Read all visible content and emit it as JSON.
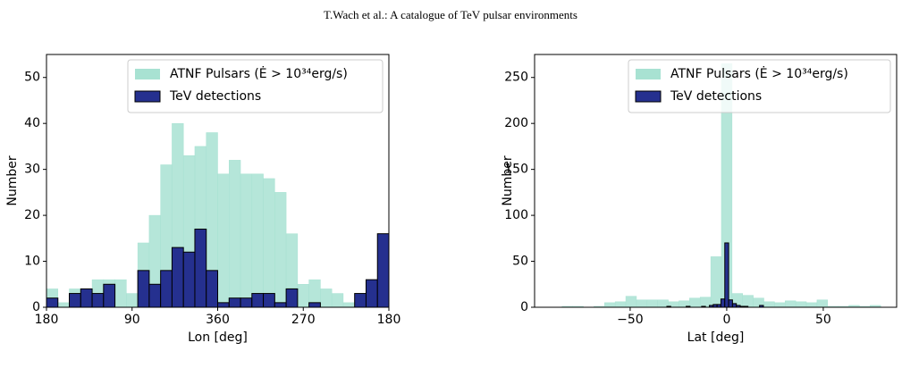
{
  "header": "T.Wach  et al.: A catalogue of TeV pulsar environments",
  "chart_data": [
    {
      "type": "histogram",
      "xlabel": "Lon [deg]",
      "ylabel": "Number",
      "xlim": [
        180,
        -180
      ],
      "xticks": [
        180,
        90,
        {
          "value": 0,
          "label": "360"
        },
        {
          "value": -90,
          "label": "270"
        },
        {
          "value": -180,
          "label": "180"
        }
      ],
      "ylim": [
        0,
        55
      ],
      "yticks": [
        0,
        10,
        20,
        30,
        40,
        50
      ],
      "legend": "upper right",
      "series": [
        {
          "name": "ATNF Pulsars (Ė > 10³⁴erg/s)",
          "color": "#a8e2d2",
          "bins": [
            180,
            168,
            156,
            144,
            132,
            120,
            108,
            96,
            84,
            72,
            60,
            48,
            36,
            24,
            12,
            0,
            -12,
            -24,
            -36,
            -48,
            -60,
            -72,
            -84,
            -96,
            -108,
            -120,
            -132,
            -144,
            -156,
            -168,
            -180
          ],
          "values": [
            4,
            1,
            4,
            4,
            6,
            6,
            6,
            3,
            14,
            20,
            31,
            40,
            33,
            35,
            38,
            29,
            32,
            29,
            29,
            28,
            25,
            16,
            5,
            6,
            4,
            3,
            1,
            3,
            5,
            3
          ]
        },
        {
          "name": "TeV detections",
          "color": "#25308f",
          "edgecolor": "#000000",
          "bins": [
            180,
            168,
            156,
            144,
            132,
            120,
            108,
            96,
            84,
            72,
            60,
            48,
            36,
            24,
            12,
            0,
            -12,
            -24,
            -36,
            -48,
            -60,
            -72,
            -84,
            -96,
            -108,
            -120,
            -132,
            -144,
            -156,
            -168,
            -180
          ],
          "values": [
            2,
            0,
            3,
            4,
            3,
            5,
            0,
            0,
            8,
            5,
            8,
            13,
            12,
            17,
            8,
            1,
            2,
            2,
            3,
            3,
            1,
            4,
            0,
            1,
            0,
            0,
            0,
            3,
            6,
            16
          ]
        }
      ]
    },
    {
      "type": "histogram",
      "xlabel": "Lat [deg]",
      "ylabel": "Number",
      "xlim": [
        -99.5,
        88
      ],
      "xticks": [
        {
          "value": -50,
          "label": "−50"
        },
        0,
        50
      ],
      "ylim": [
        0,
        275
      ],
      "yticks": [
        0,
        50,
        100,
        150,
        200,
        250
      ],
      "legend": "upper right",
      "series": [
        {
          "name": "ATNF Pulsars (Ė > 10³⁴erg/s)",
          "color": "#a8e2d2",
          "bins": [
            -85.25,
            -79.75,
            -74.25,
            -68.75,
            -63.25,
            -57.75,
            -52.25,
            -46.75,
            -41.25,
            -35.75,
            -30.25,
            -24.75,
            -19.25,
            -13.75,
            -8.25,
            -2.75,
            2.75,
            8.25,
            13.75,
            19.25,
            24.75,
            30.25,
            35.75,
            41.25,
            46.75,
            52.25,
            57.75,
            63.25,
            68.75,
            74.25,
            79.75
          ],
          "values": [
            1,
            1,
            0,
            1,
            5,
            6,
            12,
            8,
            8,
            8,
            6,
            7,
            10,
            11,
            55,
            265,
            15,
            13,
            10,
            6,
            5,
            7,
            6,
            5,
            8,
            1,
            1,
            2,
            1,
            2
          ]
        },
        {
          "name": "TeV detections",
          "color": "#25308f",
          "edgecolor": "#000000",
          "bins": [
            -31,
            -29,
            -27,
            -25,
            -23,
            -21,
            -19,
            -17,
            -15,
            -13,
            -11,
            -9,
            -7,
            -5,
            -3,
            -1,
            1,
            3,
            5,
            7,
            9,
            11,
            13,
            15,
            17,
            19
          ],
          "values": [
            1,
            0,
            0,
            0,
            0,
            1,
            0,
            0,
            0,
            1,
            0,
            2,
            3,
            3,
            9,
            70,
            8,
            4,
            2,
            1,
            1,
            0,
            0,
            0,
            2
          ]
        }
      ]
    }
  ]
}
